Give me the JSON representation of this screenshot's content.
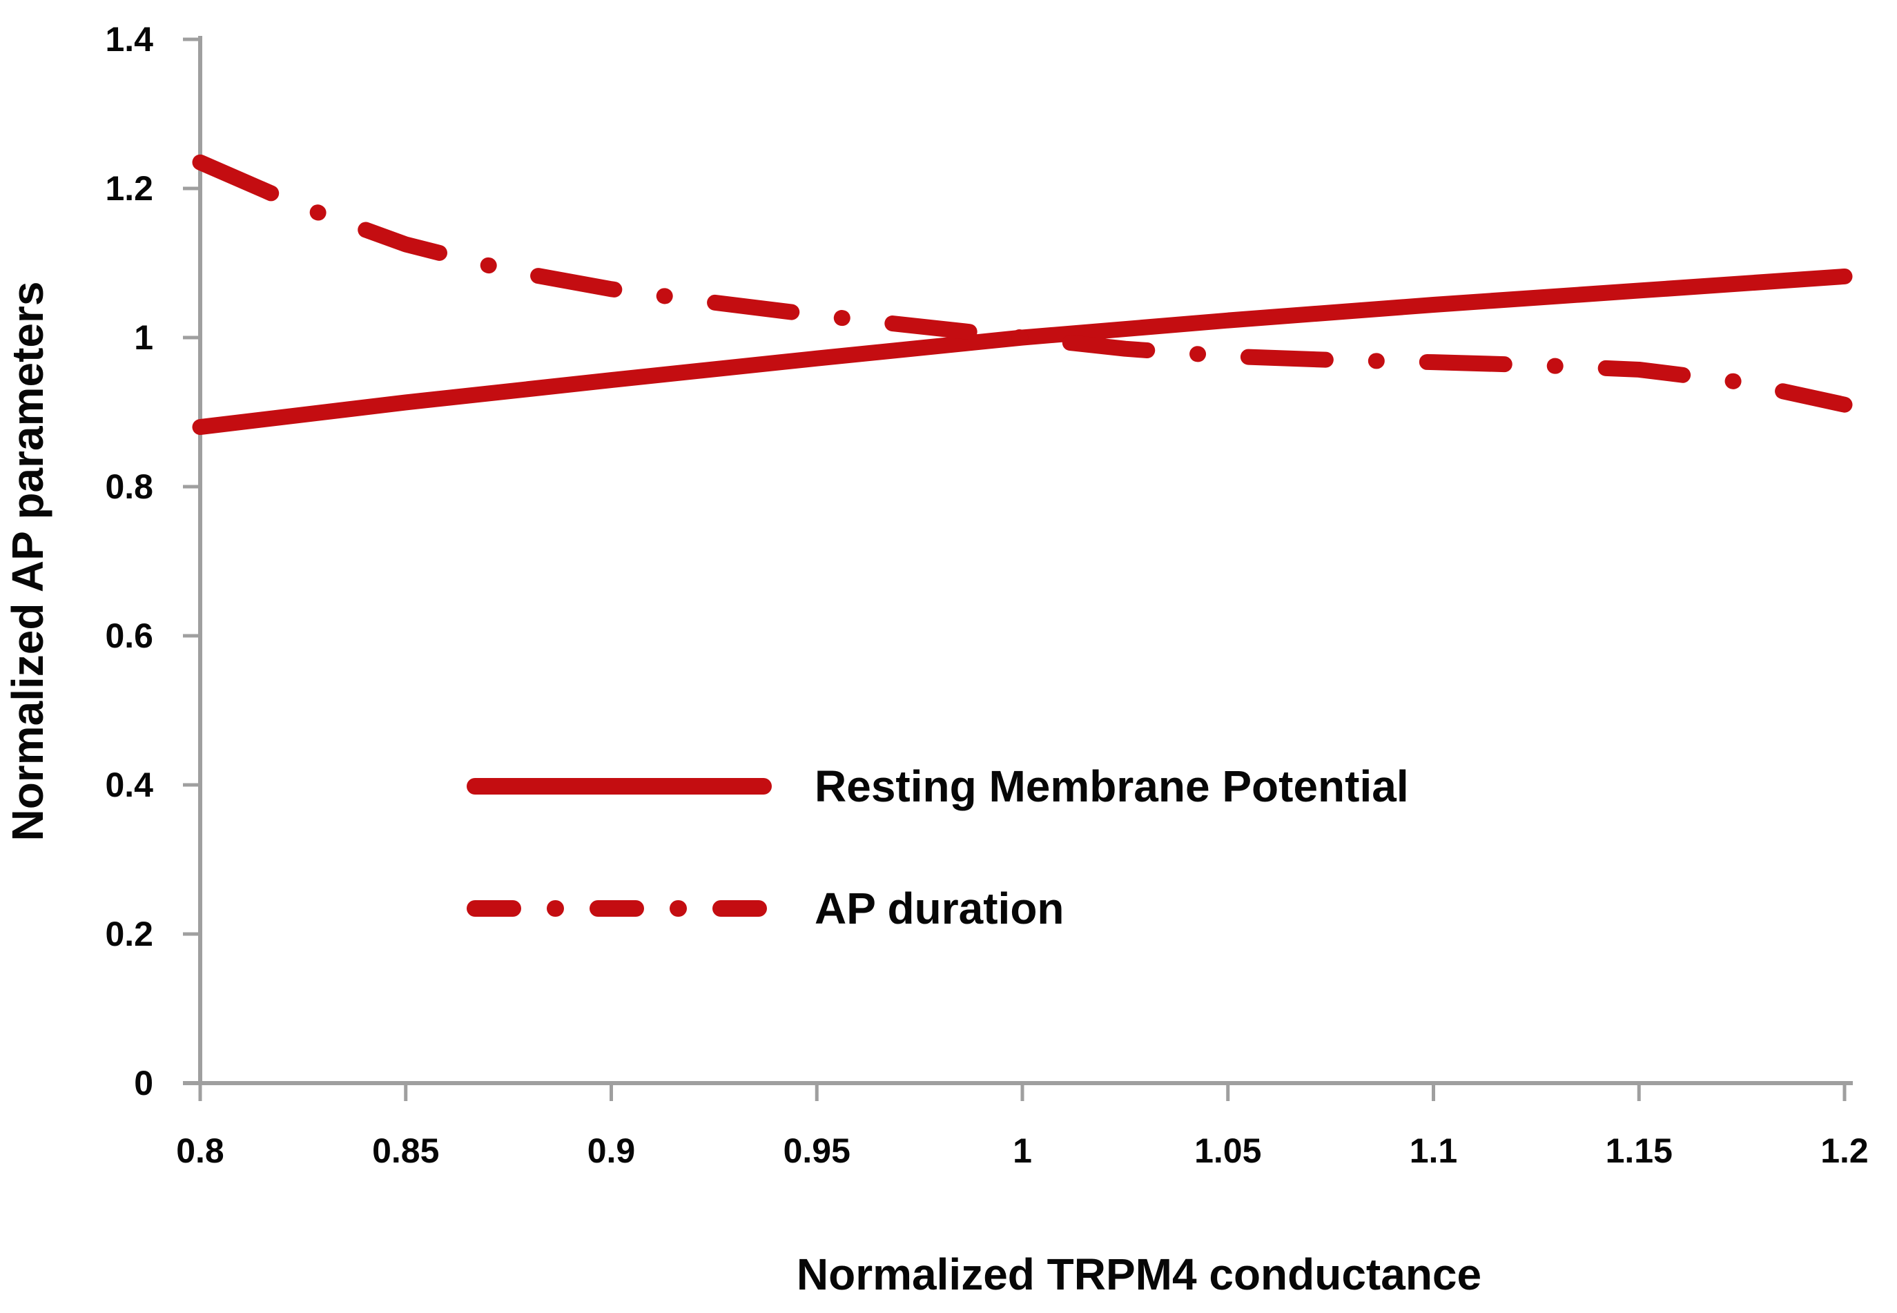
{
  "theme": {
    "background": "#ffffff",
    "series_red": "#c40d11",
    "axis_gray": "#9f9f9f",
    "text_black": "#070707"
  },
  "chart_data": {
    "type": "line",
    "title": "",
    "xlabel": "Normalized TRPM4 conductance",
    "ylabel": "Normalized AP parameters",
    "xlim": [
      0.8,
      1.2
    ],
    "ylim": [
      0,
      1.4
    ],
    "xticks": [
      0.8,
      0.85,
      0.9,
      0.95,
      1,
      1.05,
      1.1,
      1.15,
      1.2
    ],
    "xtick_labels": [
      "0.8",
      "0.85",
      "0.9",
      "0.95",
      "1",
      "1.05",
      "1.1",
      "1.15",
      "1.2"
    ],
    "yticks": [
      0,
      0.2,
      0.4,
      0.6,
      0.8,
      1,
      1.2,
      1.4
    ],
    "ytick_labels": [
      "0",
      "0.2",
      "0.4",
      "0.6",
      "0.8",
      "1",
      "1.2",
      "1.4"
    ],
    "grid": false,
    "legend_position": "inside-left-middle",
    "series": [
      {
        "name": "Resting Membrane Potential",
        "style": "solid",
        "color": "#c40d11",
        "x": [
          0.8,
          0.85,
          0.9,
          0.95,
          1.0,
          1.05,
          1.1,
          1.15,
          1.2
        ],
        "y": [
          0.88,
          0.913,
          0.943,
          0.972,
          1.0,
          1.023,
          1.044,
          1.063,
          1.082
        ]
      },
      {
        "name": "AP duration",
        "style": "dash-dot",
        "color": "#c40d11",
        "x": [
          0.8,
          0.825,
          0.85,
          0.875,
          0.9,
          0.925,
          0.95,
          0.975,
          1.0,
          1.025,
          1.05,
          1.075,
          1.1,
          1.125,
          1.15,
          1.175,
          1.2
        ],
        "y": [
          1.235,
          1.175,
          1.125,
          1.09,
          1.065,
          1.047,
          1.03,
          1.015,
          1.0,
          0.985,
          0.975,
          0.97,
          0.967,
          0.963,
          0.957,
          0.94,
          0.91
        ]
      }
    ]
  }
}
